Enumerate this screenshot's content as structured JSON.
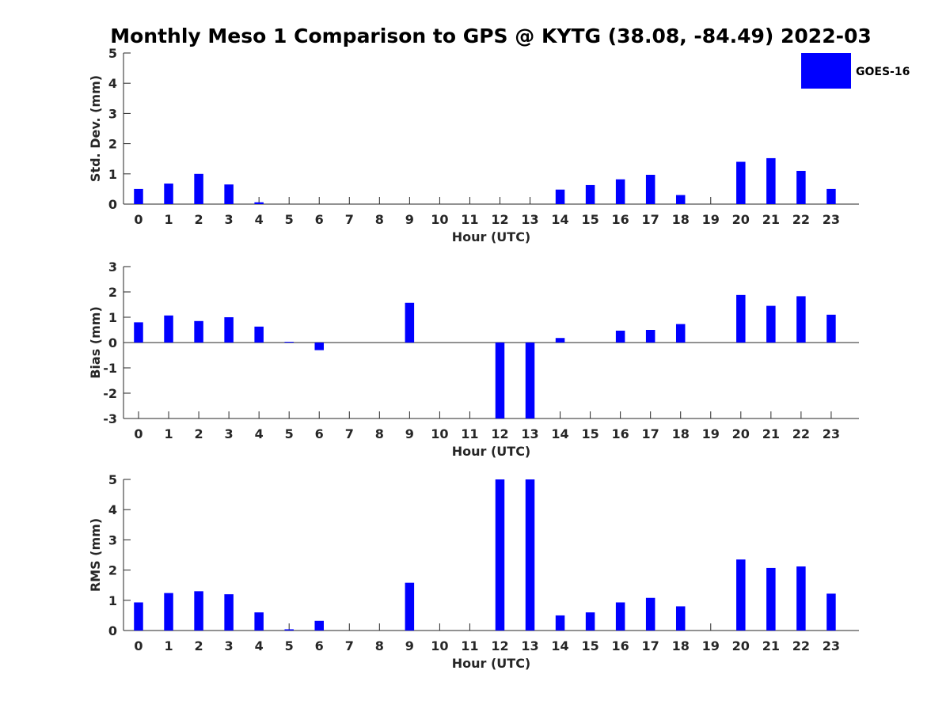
{
  "chart_data": {
    "title": "Monthly Meso 1 Comparison to GPS @ KYTG (38.08, -84.49) 2022-03",
    "legend": {
      "label": "GOES-16",
      "color": "#0000ff",
      "placement": "top-right"
    },
    "bar_color": "#0000ff",
    "categories": [
      "0",
      "1",
      "2",
      "3",
      "4",
      "5",
      "6",
      "7",
      "8",
      "9",
      "10",
      "11",
      "12",
      "13",
      "14",
      "15",
      "16",
      "17",
      "18",
      "19",
      "20",
      "21",
      "22",
      "23"
    ],
    "panels": [
      {
        "type": "bar",
        "ylabel": "Std. Dev. (mm)",
        "xlabel": "Hour (UTC)",
        "ylim": [
          0,
          5
        ],
        "yticks": [
          0,
          1,
          2,
          3,
          4,
          5
        ],
        "values": [
          0.5,
          0.68,
          1.0,
          0.65,
          0.06,
          0,
          0,
          0,
          0,
          0,
          0,
          0,
          0,
          0,
          0.48,
          0.63,
          0.82,
          0.97,
          0.3,
          0,
          1.4,
          1.52,
          1.1,
          0.5
        ]
      },
      {
        "type": "bar",
        "ylabel": "Bias (mm)",
        "xlabel": "Hour (UTC)",
        "ylim": [
          -3,
          3
        ],
        "yticks": [
          -3,
          -2,
          -1,
          0,
          1,
          2,
          3
        ],
        "values": [
          0.8,
          1.07,
          0.85,
          1.0,
          0.63,
          0.03,
          -0.3,
          0,
          0,
          1.57,
          0,
          0,
          -3,
          -3,
          0.18,
          0,
          0.47,
          0.5,
          0.73,
          0,
          1.88,
          1.45,
          1.83,
          1.1
        ]
      },
      {
        "type": "bar",
        "ylabel": "RMS (mm)",
        "xlabel": "Hour (UTC)",
        "ylim": [
          0,
          5
        ],
        "yticks": [
          0,
          1,
          2,
          3,
          4,
          5
        ],
        "values": [
          0.93,
          1.24,
          1.3,
          1.2,
          0.6,
          0.04,
          0.32,
          0,
          0,
          1.58,
          0,
          0,
          5,
          5,
          0.5,
          0.6,
          0.93,
          1.08,
          0.8,
          0,
          2.35,
          2.07,
          2.12,
          1.22
        ]
      }
    ]
  }
}
